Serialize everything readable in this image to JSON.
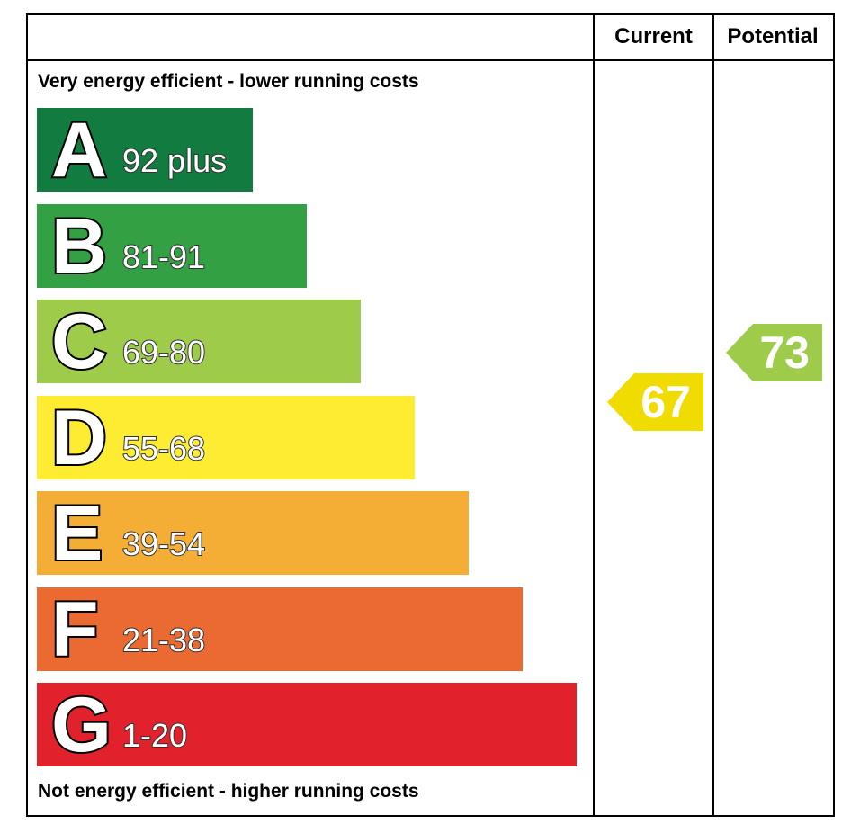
{
  "chart_data": {
    "type": "bar",
    "header": {
      "current": "Current",
      "potential": "Potential"
    },
    "top_caption": "Very energy efficient - lower running costs",
    "bottom_caption": "Not energy efficient - higher running costs",
    "bands": [
      {
        "letter": "A",
        "range": "92 plus",
        "color": "#117b40"
      },
      {
        "letter": "B",
        "range": "81-91",
        "color": "#33a043"
      },
      {
        "letter": "C",
        "range": "69-80",
        "color": "#9fcb4b"
      },
      {
        "letter": "D",
        "range": "55-68",
        "color": "#fdec32"
      },
      {
        "letter": "E",
        "range": "39-54",
        "color": "#f5ae35"
      },
      {
        "letter": "F",
        "range": "21-38",
        "color": "#ea6a31"
      },
      {
        "letter": "G",
        "range": "1-20",
        "color": "#e1212c"
      }
    ],
    "current": {
      "value": "67",
      "band": "D",
      "color": "#f0dc00"
    },
    "potential": {
      "value": "73",
      "band": "C",
      "color": "#9fcb4b"
    }
  }
}
